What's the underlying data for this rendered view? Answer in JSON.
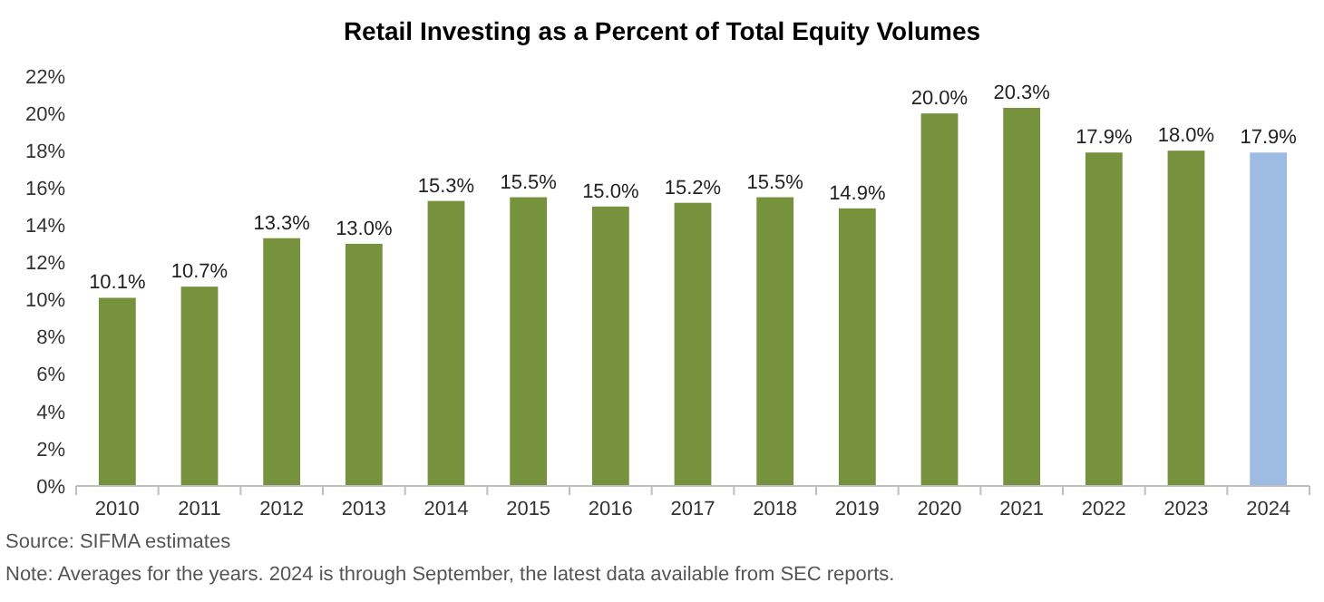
{
  "chart_data": {
    "type": "bar",
    "title": "Retail Investing as a Percent of Total Equity Volumes",
    "categories": [
      "2010",
      "2011",
      "2012",
      "2013",
      "2014",
      "2015",
      "2016",
      "2017",
      "2018",
      "2019",
      "2020",
      "2021",
      "2022",
      "2023",
      "2024"
    ],
    "values": [
      10.1,
      10.7,
      13.3,
      13.0,
      15.3,
      15.5,
      15.0,
      15.2,
      15.5,
      14.9,
      20.0,
      20.3,
      17.9,
      18.0,
      17.9
    ],
    "colors": [
      "#76923c",
      "#76923c",
      "#76923c",
      "#76923c",
      "#76923c",
      "#76923c",
      "#76923c",
      "#76923c",
      "#76923c",
      "#76923c",
      "#76923c",
      "#76923c",
      "#76923c",
      "#76923c",
      "#9dbbe3"
    ],
    "value_labels": [
      "10.1%",
      "10.7%",
      "13.3%",
      "13.0%",
      "15.3%",
      "15.5%",
      "15.0%",
      "15.2%",
      "15.5%",
      "14.9%",
      "20.0%",
      "20.3%",
      "17.9%",
      "18.0%",
      "17.9%"
    ],
    "ylim": [
      0,
      22
    ],
    "yticks": [
      {
        "value": 0,
        "label": "0%"
      },
      {
        "value": 2,
        "label": "2%"
      },
      {
        "value": 4,
        "label": "4%"
      },
      {
        "value": 6,
        "label": "6%"
      },
      {
        "value": 8,
        "label": "8%"
      },
      {
        "value": 10,
        "label": "10%"
      },
      {
        "value": 12,
        "label": "12%"
      },
      {
        "value": 14,
        "label": "14%"
      },
      {
        "value": 16,
        "label": "16%"
      },
      {
        "value": 18,
        "label": "18%"
      },
      {
        "value": 20,
        "label": "20%"
      },
      {
        "value": 22,
        "label": "22%"
      }
    ],
    "grid": false,
    "annotations": [
      "Source: SIFMA estimates",
      "Note: Averages for the years. 2024 is through September, the latest data available from SEC reports."
    ]
  }
}
